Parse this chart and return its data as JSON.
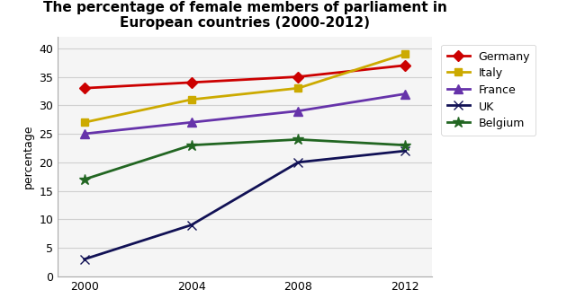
{
  "title": "The percentage of female members of parliament in\nEuropean countries (2000-2012)",
  "ylabel": "percentage",
  "years": [
    2000,
    2004,
    2008,
    2012
  ],
  "series": [
    {
      "label": "Germany",
      "values": [
        33,
        34,
        35,
        37
      ],
      "color": "#cc0000",
      "marker": "D",
      "markersize": 6
    },
    {
      "label": "Italy",
      "values": [
        27,
        31,
        33,
        39
      ],
      "color": "#ccaa00",
      "marker": "s",
      "markersize": 6
    },
    {
      "label": "France",
      "values": [
        25,
        27,
        29,
        32
      ],
      "color": "#6633aa",
      "marker": "^",
      "markersize": 7
    },
    {
      "label": "UK",
      "values": [
        3,
        9,
        20,
        22
      ],
      "color": "#111155",
      "marker": "x",
      "markersize": 7
    },
    {
      "label": "Belgium",
      "values": [
        17,
        23,
        24,
        23
      ],
      "color": "#226622",
      "marker": "*",
      "markersize": 9
    }
  ],
  "ylim": [
    0,
    42
  ],
  "yticks": [
    0,
    5,
    10,
    15,
    20,
    25,
    30,
    35,
    40
  ],
  "xticks": [
    2000,
    2004,
    2008,
    2012
  ],
  "background_color": "#ffffff",
  "plot_bg_color": "#f5f5f5",
  "grid_color": "#d0d0d0",
  "title_fontsize": 11,
  "axis_label_fontsize": 9,
  "tick_fontsize": 9,
  "legend_fontsize": 9,
  "linewidth": 2.0
}
